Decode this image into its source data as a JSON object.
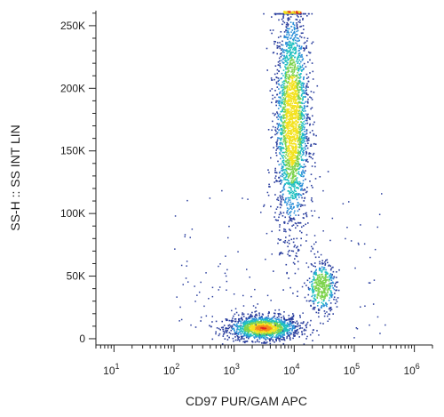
{
  "chart_data": {
    "type": "scatter",
    "style": "pseudocolor-density",
    "xlabel": "CD97 PUR/GAM APC",
    "ylabel": "SS-H :: SS INT LIN",
    "x_scale": "log",
    "xlim": [
      5,
      2000000
    ],
    "ylim": [
      -5000,
      262000
    ],
    "x_ticks": [
      {
        "value": 10,
        "base": "10",
        "exp": "1"
      },
      {
        "value": 100,
        "base": "10",
        "exp": "2"
      },
      {
        "value": 1000,
        "base": "10",
        "exp": "3"
      },
      {
        "value": 10000,
        "base": "10",
        "exp": "4"
      },
      {
        "value": 100000,
        "base": "10",
        "exp": "5"
      },
      {
        "value": 1000000,
        "base": "10",
        "exp": "6"
      }
    ],
    "y_ticks": [
      {
        "value": 0,
        "label": "0"
      },
      {
        "value": 50000,
        "label": "50K"
      },
      {
        "value": 100000,
        "label": "100K"
      },
      {
        "value": 150000,
        "label": "150K"
      },
      {
        "value": 200000,
        "label": "200K"
      },
      {
        "value": 250000,
        "label": "250K"
      }
    ],
    "populations": [
      {
        "x_center": 3000,
        "x_spread_decades": 0.3,
        "y_center": 9000,
        "y_spread": 5000,
        "points": 1400
      },
      {
        "x_center": 9000,
        "x_spread_decades": 0.14,
        "y_center": 175000,
        "y_spread": 45000,
        "points": 2400
      },
      {
        "x_center": 28000,
        "x_spread_decades": 0.12,
        "y_center": 42000,
        "y_spread": 10000,
        "points": 420
      }
    ],
    "density_colors": [
      "#2b3f9e",
      "#2a8fd8",
      "#20c0c0",
      "#7dd34d",
      "#f3e21f",
      "#f38a1c",
      "#e3241f"
    ],
    "grid": false,
    "legend": "none"
  }
}
